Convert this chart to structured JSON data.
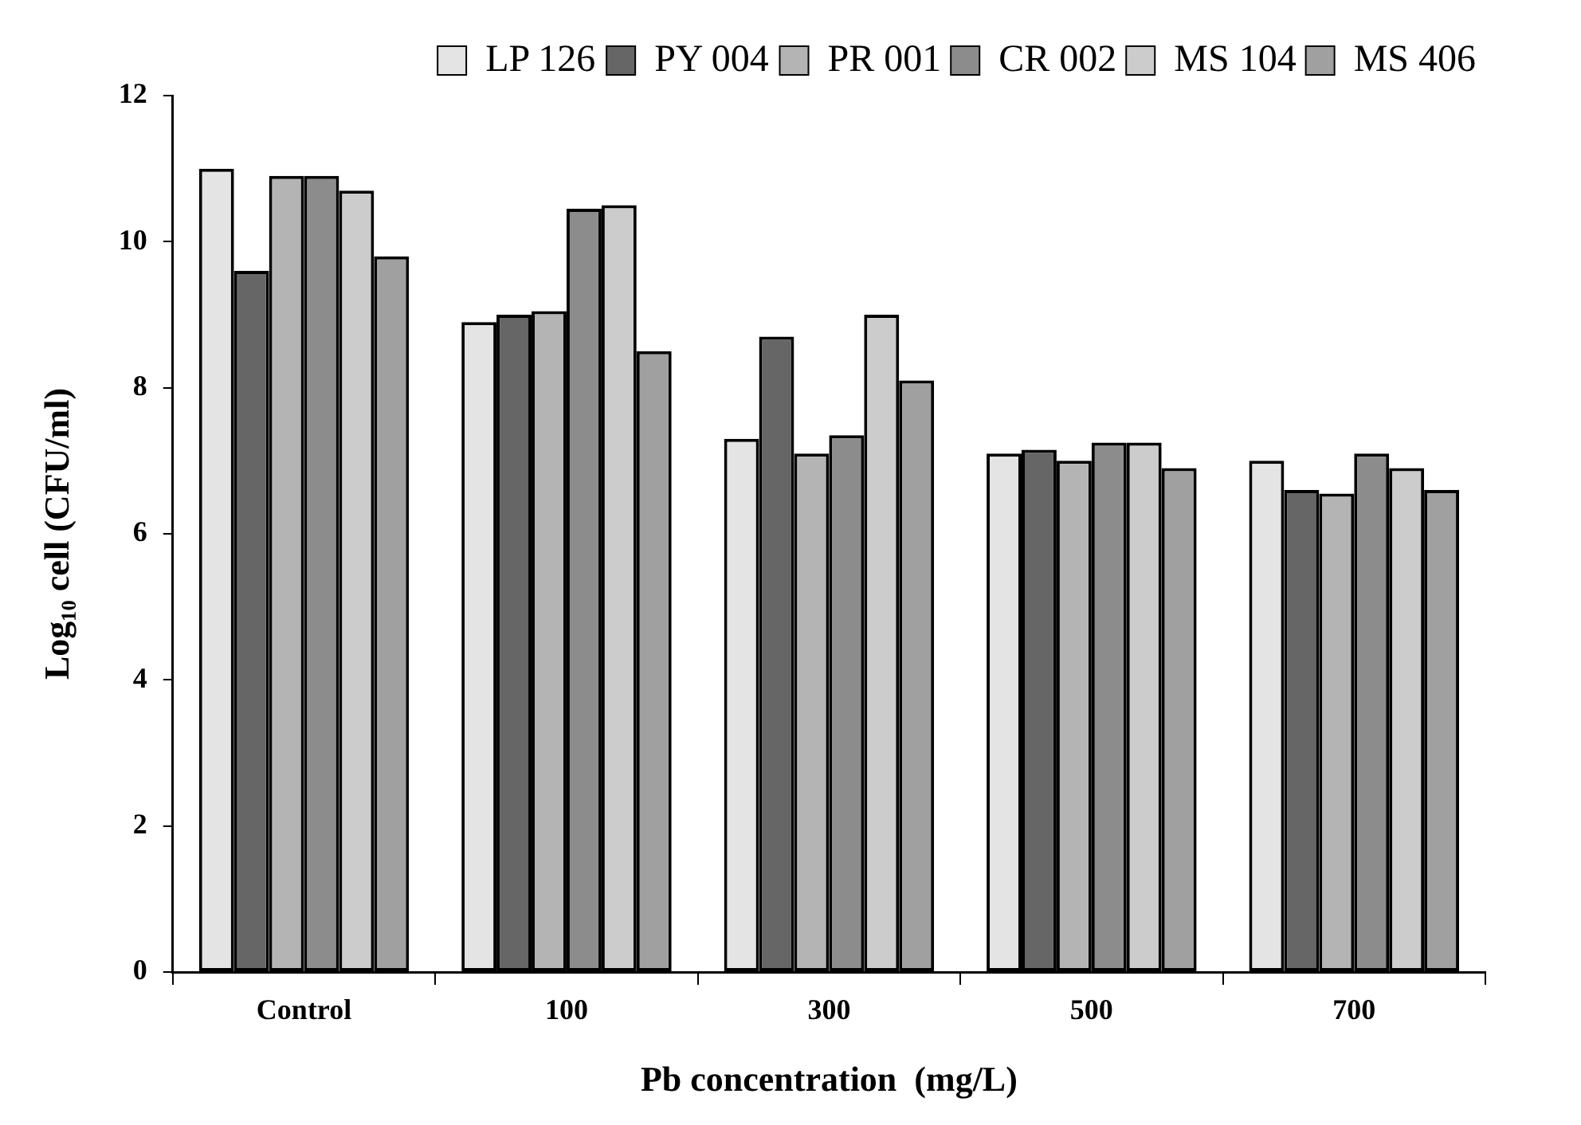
{
  "chart_data": {
    "type": "bar",
    "xlabel": "Pb concentration  (mg/L)",
    "ylabel": "Log₁₀ cell (CFU/ml)",
    "categories": [
      "Control",
      "100",
      "300",
      "500",
      "700"
    ],
    "series": [
      {
        "name": "LP 126",
        "color": "#e4e4e4",
        "values": [
          11.0,
          8.9,
          7.3,
          7.1,
          7.0
        ]
      },
      {
        "name": "PY 004",
        "color": "#666666",
        "values": [
          9.6,
          9.0,
          8.7,
          7.15,
          6.6
        ]
      },
      {
        "name": "PR 001",
        "color": "#b4b4b4",
        "values": [
          10.9,
          9.05,
          7.1,
          7.0,
          6.55
        ]
      },
      {
        "name": "CR 002",
        "color": "#8c8c8c",
        "values": [
          10.9,
          10.45,
          7.35,
          7.25,
          7.1
        ]
      },
      {
        "name": "MS 104",
        "color": "#cccccc",
        "values": [
          10.7,
          10.5,
          9.0,
          7.25,
          6.9
        ]
      },
      {
        "name": "MS 406",
        "color": "#a0a0a0",
        "values": [
          9.8,
          8.5,
          8.1,
          6.9,
          6.6
        ]
      }
    ],
    "ylim": [
      0,
      12
    ],
    "yticks": [
      0,
      2,
      4,
      6,
      8,
      10,
      12
    ],
    "grid": false,
    "legend": "top"
  }
}
